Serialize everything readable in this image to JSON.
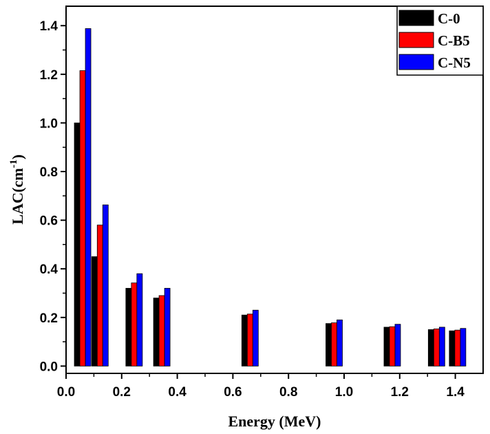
{
  "chart_data": {
    "type": "bar",
    "xlabel": "Energy (MeV)",
    "ylabel_main": "LAC(cm",
    "ylabel_sup": "-1",
    "ylabel_close": ")",
    "xlim": [
      0.0,
      1.5
    ],
    "ylim": [
      -0.03,
      1.48
    ],
    "x_ticks": [
      0.0,
      0.2,
      0.4,
      0.6,
      0.8,
      1.0,
      1.2,
      1.4
    ],
    "x_tick_labels": [
      "0.0",
      "0.2",
      "0.4",
      "0.6",
      "0.8",
      "1.0",
      "1.2",
      "1.4"
    ],
    "y_ticks": [
      0.0,
      0.2,
      0.4,
      0.6,
      0.8,
      1.0,
      1.2,
      1.4
    ],
    "y_tick_labels": [
      "0.0",
      "0.2",
      "0.4",
      "0.6",
      "0.8",
      "1.0",
      "1.2",
      "1.4"
    ],
    "energies": [
      0.0595,
      0.122,
      0.2447,
      0.3443,
      0.6617,
      0.9641,
      1.1732,
      1.3325,
      1.4081
    ],
    "series": [
      {
        "name": "C-0",
        "color": "#000000",
        "values": [
          1.0,
          0.45,
          0.32,
          0.28,
          0.21,
          0.175,
          0.16,
          0.15,
          0.145
        ]
      },
      {
        "name": "C-B5",
        "color": "#ff0000",
        "values": [
          1.215,
          0.58,
          0.342,
          0.29,
          0.214,
          0.178,
          0.162,
          0.153,
          0.148
        ]
      },
      {
        "name": "C-N5",
        "color": "#0000ff",
        "values": [
          1.388,
          0.663,
          0.38,
          0.32,
          0.23,
          0.19,
          0.172,
          0.16,
          0.155
        ]
      }
    ],
    "legend_position": "top-right",
    "grid": false
  }
}
